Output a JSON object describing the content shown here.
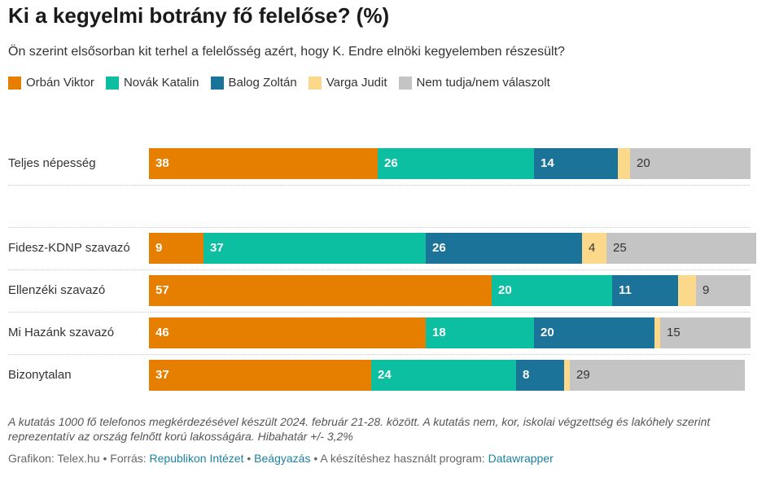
{
  "header": {
    "title": "Ki a kegyelmi botrány fő felelőse? (%)",
    "subtitle": "Ön szerint elsősorban kit terhel a felelősség azért, hogy K. Endre elnöki kegyelemben részesült?"
  },
  "chart_data": {
    "type": "bar",
    "orientation": "horizontal",
    "stacked": true,
    "xlim": [
      0,
      100
    ],
    "legend_position": "top",
    "categories": [
      "Teljes népesség",
      "Fidesz-KDNP szavazó",
      "Ellenzéki szavazó",
      "Mi Hazánk szavazó",
      "Bizonytalan"
    ],
    "series": [
      {
        "name": "Orbán Viktor",
        "color": "#e67e00",
        "values": [
          38,
          9,
          57,
          46,
          37
        ],
        "labels": [
          "38",
          "9",
          "57",
          "46",
          "37"
        ]
      },
      {
        "name": "Novák Katalin",
        "color": "#0bbfa0",
        "values": [
          26,
          37,
          20,
          18,
          24
        ],
        "labels": [
          "26",
          "37",
          "20",
          "18",
          "24"
        ]
      },
      {
        "name": "Balog Zoltán",
        "color": "#1c7399",
        "values": [
          14,
          26,
          11,
          20,
          8
        ],
        "labels": [
          "14",
          "26",
          "11",
          "20",
          "8"
        ]
      },
      {
        "name": "Varga Judit",
        "color": "#fcd98a",
        "values": [
          2,
          4,
          3,
          1,
          1
        ],
        "labels": [
          "",
          "4",
          "",
          "",
          ""
        ]
      },
      {
        "name": "Nem tudja/nem válaszolt",
        "color": "#c4c4c4",
        "values": [
          20,
          25,
          9,
          15,
          29
        ],
        "labels": [
          "20",
          "25",
          "9",
          "15",
          "29"
        ]
      }
    ]
  },
  "note": "A kutatás 1000 fő telefonos megkérdezésével készült 2024. február 21-28. között. A kutatás nem, kor, iskolai végzettség és lakóhely szerint reprezentatív az ország felnőtt korú lakosságára. Hibahatár +/- 3,2%",
  "footer": {
    "graphic_label": "Grafikon: Telex.hu",
    "sep": " • ",
    "source_label": "Forrás: ",
    "source_link": "Republikon Intézet",
    "embed_link": "Beágyazás",
    "program_label": "A készítéshez használt program: ",
    "program_link": "Datawrapper"
  }
}
